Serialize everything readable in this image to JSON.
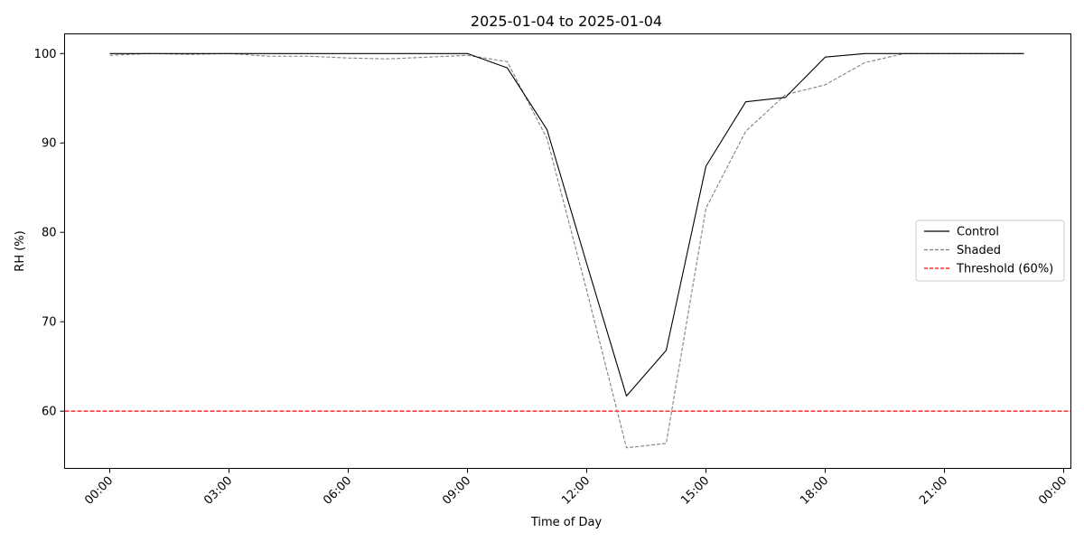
{
  "chart_data": {
    "type": "line",
    "title": "2025-01-04 to 2025-01-04",
    "xlabel": "Time of Day",
    "ylabel": "RH (%)",
    "x": [
      "00:00",
      "01:00",
      "02:00",
      "03:00",
      "04:00",
      "05:00",
      "06:00",
      "07:00",
      "08:00",
      "09:00",
      "10:00",
      "11:00",
      "12:00",
      "13:00",
      "14:00",
      "15:00",
      "16:00",
      "17:00",
      "18:00",
      "19:00",
      "20:00",
      "21:00",
      "22:00",
      "23:00"
    ],
    "x_ticks": [
      "00:00",
      "03:00",
      "06:00",
      "09:00",
      "12:00",
      "15:00",
      "18:00",
      "21:00",
      "00:00"
    ],
    "y_ticks": [
      60,
      70,
      80,
      90,
      100
    ],
    "ylim": [
      53.6,
      102.2
    ],
    "series": [
      {
        "name": "Control",
        "color": "#000000",
        "dash": "solid",
        "values": [
          100,
          100,
          100,
          100,
          100,
          100,
          100,
          100,
          100,
          100,
          98.4,
          91.5,
          76.5,
          61.7,
          66.8,
          87.4,
          94.6,
          95.1,
          99.6,
          100,
          100,
          100,
          100,
          100
        ]
      },
      {
        "name": "Shaded",
        "color": "#808080",
        "dash": "dashed",
        "values": [
          99.8,
          100,
          99.9,
          100,
          99.7,
          99.7,
          99.5,
          99.4,
          99.6,
          99.8,
          99.1,
          90.5,
          73.5,
          55.9,
          56.4,
          82.7,
          91.3,
          95.4,
          96.5,
          99.0,
          100,
          100,
          100,
          100
        ]
      }
    ],
    "threshold": {
      "name": "Threshold (60%)",
      "value": 60,
      "color": "#ff0000",
      "dash": "dashed"
    },
    "legend_position": "center-right",
    "grid": false
  }
}
